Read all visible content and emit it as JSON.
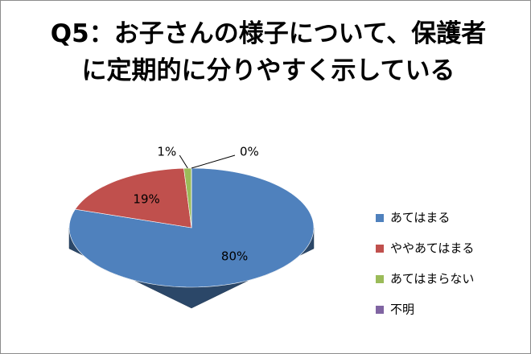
{
  "chart_data": {
    "type": "pie3d",
    "title": "Q5：お子さんの様子について、保護者に定期的に分りやすく示している",
    "categories": [
      "あてはまる",
      "ややあてはまる",
      "あてはまらない",
      "不明"
    ],
    "values": [
      80,
      19,
      1,
      0
    ],
    "value_labels": [
      "80%",
      "19%",
      "1%",
      "0%"
    ],
    "colors": [
      "#4f81bd",
      "#c0504d",
      "#9bbb59",
      "#8064a2"
    ],
    "legend": "right"
  }
}
